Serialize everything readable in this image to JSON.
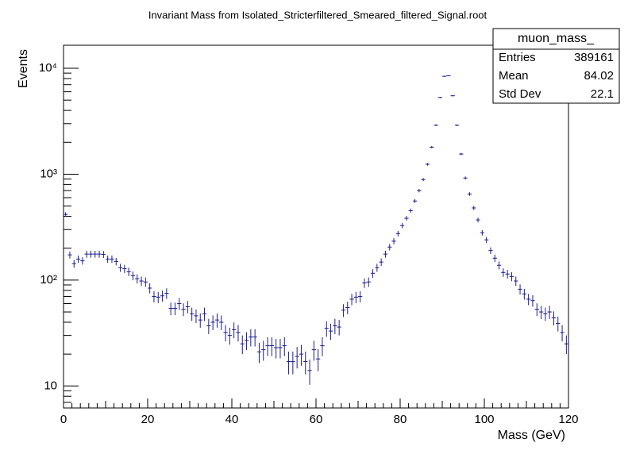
{
  "chart_data": {
    "type": "histogram",
    "title": "Invariant Mass from Isolated_Stricterfiltered_Smeared_filtered_Signal.root",
    "x_label": "Mass (GeV)",
    "y_label": "Events",
    "bins": [
      0,
      1,
      2,
      3,
      4,
      5,
      6,
      7,
      8,
      9,
      10,
      11,
      12,
      13,
      14,
      15,
      16,
      17,
      18,
      19,
      20,
      21,
      22,
      23,
      24,
      25,
      26,
      27,
      28,
      29,
      30,
      31,
      32,
      33,
      34,
      35,
      36,
      37,
      38,
      39,
      40,
      41,
      42,
      43,
      44,
      45,
      46,
      47,
      48,
      49,
      50,
      51,
      52,
      53,
      54,
      55,
      56,
      57,
      58,
      59,
      60,
      61,
      62,
      63,
      64,
      65,
      66,
      67,
      68,
      69,
      70,
      71,
      72,
      73,
      74,
      75,
      76,
      77,
      78,
      79,
      80,
      81,
      82,
      83,
      84,
      85,
      86,
      87,
      88,
      89,
      90,
      91,
      92,
      93,
      94,
      95,
      96,
      97,
      98,
      99,
      100,
      101,
      102,
      103,
      104,
      105,
      106,
      107,
      108,
      109,
      110,
      111,
      112,
      113,
      114,
      115,
      116,
      117,
      118,
      119,
      120
    ],
    "values": [
      417,
      173,
      143,
      158,
      152,
      176,
      176,
      176,
      176,
      175,
      158,
      158,
      150,
      131,
      128,
      120,
      110,
      103,
      98,
      96,
      84,
      70,
      69,
      71,
      75,
      54,
      54,
      60,
      53,
      56,
      48,
      46,
      42,
      48,
      37,
      40,
      42,
      40,
      32,
      30,
      34,
      32,
      25,
      27,
      29,
      29,
      21,
      22,
      24,
      24,
      23,
      23,
      24,
      17,
      17,
      19,
      20,
      17,
      14,
      22,
      18,
      24,
      35,
      33,
      37,
      36,
      52,
      55,
      66,
      69,
      70,
      94,
      96,
      116,
      131,
      148,
      176,
      205,
      233,
      275,
      327,
      383,
      452,
      558,
      700,
      890,
      1240,
      1800,
      2900,
      5300,
      8400,
      8500,
      5500,
      2900,
      1550,
      920,
      650,
      480,
      370,
      280,
      240,
      190,
      161,
      138,
      118,
      114,
      108,
      98,
      82,
      74,
      66,
      64,
      53,
      50,
      48,
      50,
      44,
      39,
      32,
      25
    ],
    "color": "#1c1c8c",
    "xlim": [
      0,
      120
    ],
    "xticks": [
      0,
      20,
      40,
      60,
      80,
      100,
      120
    ],
    "ylim": [
      6.2,
      16500
    ],
    "log_y": true,
    "yticks": [
      {
        "value": 10,
        "label": "10"
      },
      {
        "value": 100,
        "label": "10²"
      },
      {
        "value": 1000,
        "label": "10³"
      },
      {
        "value": 10000,
        "label": "10⁴"
      }
    ],
    "stats": {
      "name": "muon_mass_",
      "rows": [
        [
          "Entries",
          389161
        ],
        [
          "Mean",
          84.02
        ],
        [
          "Std Dev",
          22.1
        ]
      ]
    }
  }
}
